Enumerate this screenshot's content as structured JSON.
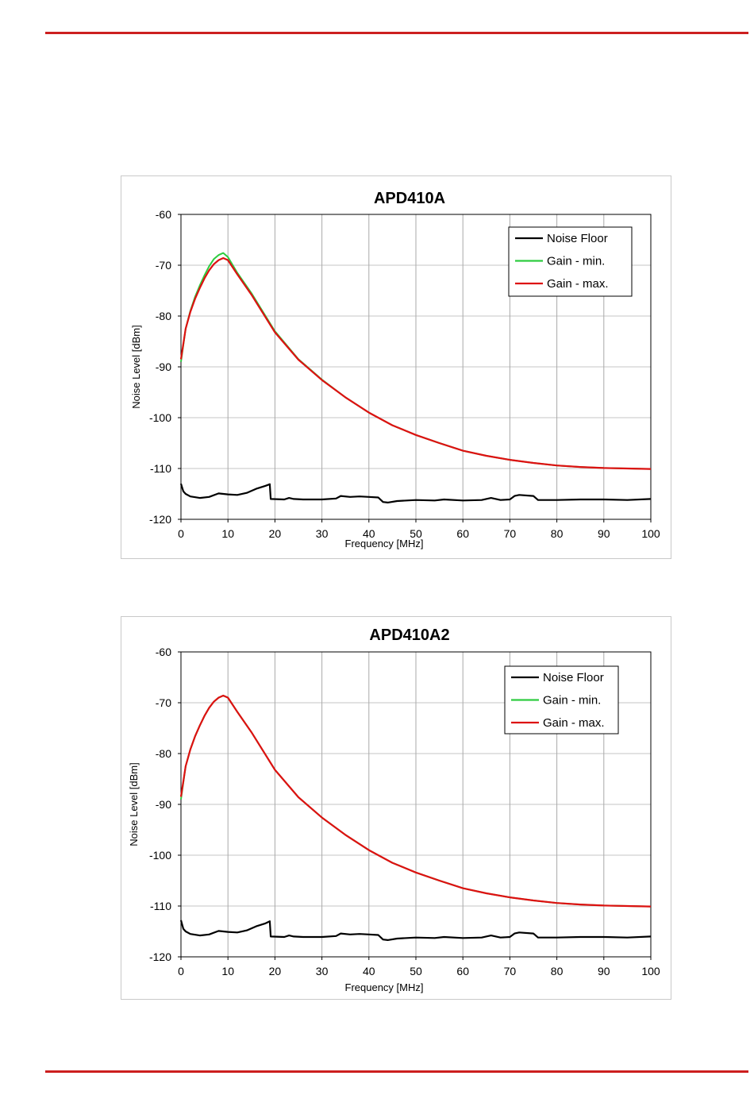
{
  "colors": {
    "rule": "#cc1f1f",
    "noise_floor": "#000000",
    "gain_min": "#2ecc40",
    "gain_max": "#dd1111"
  },
  "chart_data": [
    {
      "type": "line",
      "title": "APD410A",
      "xlabel": "Frequency [MHz]",
      "ylabel": "Noise Level [dBm]",
      "xlim": [
        0,
        100
      ],
      "ylim": [
        -120,
        -60
      ],
      "xticks": [
        "0",
        "10",
        "20",
        "30",
        "40",
        "50",
        "60",
        "70",
        "80",
        "90",
        "100"
      ],
      "yticks": [
        "-60",
        "-70",
        "-80",
        "-90",
        "-100",
        "-110",
        "-120"
      ],
      "grid": true,
      "legend_position": "top-right",
      "series": [
        {
          "name": "Noise Floor",
          "color": "#000000",
          "x": [
            0,
            0.5,
            1,
            2,
            4,
            6,
            8,
            10,
            12,
            14,
            16,
            18,
            18.9,
            19.1,
            22,
            23,
            24,
            26,
            30,
            33,
            34,
            36,
            38,
            40,
            42,
            43,
            44,
            46,
            50,
            54,
            56,
            60,
            64,
            66,
            68,
            70,
            71,
            72,
            75,
            76,
            80,
            85,
            90,
            95,
            100
          ],
          "y": [
            -113,
            -114.5,
            -115,
            -115.5,
            -115.8,
            -115.6,
            -114.9,
            -115.1,
            -115.2,
            -114.8,
            -114,
            -113.4,
            -113.1,
            -116,
            -116.1,
            -115.8,
            -116,
            -116.1,
            -116.1,
            -115.9,
            -115.4,
            -115.6,
            -115.5,
            -115.6,
            -115.7,
            -116.6,
            -116.7,
            -116.4,
            -116.2,
            -116.3,
            -116.1,
            -116.3,
            -116.2,
            -115.8,
            -116.2,
            -116.1,
            -115.4,
            -115.2,
            -115.4,
            -116.2,
            -116.2,
            -116.1,
            -116.1,
            -116.2,
            -116
          ]
        },
        {
          "name": "Gain - min.",
          "color": "#2ecc40",
          "x": [
            0,
            1,
            2,
            3,
            4,
            5,
            6,
            7,
            8,
            9,
            10,
            12,
            15,
            20,
            25,
            30,
            35,
            40,
            45,
            50,
            55,
            60,
            65,
            70,
            75,
            80,
            85,
            90,
            95,
            100
          ],
          "y": [
            -89,
            -82.5,
            -79,
            -76.2,
            -74,
            -72,
            -70.2,
            -68.8,
            -68,
            -67.6,
            -68.4,
            -71.5,
            -75.5,
            -83,
            -88.5,
            -92.5,
            -96,
            -99,
            -101.5,
            -103.4,
            -105,
            -106.5,
            -107.5,
            -108.3,
            -108.9,
            -109.4,
            -109.7,
            -109.9,
            -110,
            -110.1
          ]
        },
        {
          "name": "Gain - max.",
          "color": "#dd1111",
          "x": [
            0,
            1,
            2,
            3,
            4,
            5,
            6,
            7,
            8,
            9,
            10,
            12,
            15,
            20,
            25,
            30,
            35,
            40,
            45,
            50,
            55,
            60,
            65,
            70,
            75,
            80,
            85,
            90,
            95,
            100
          ],
          "y": [
            -88.5,
            -82.5,
            -79.2,
            -76.6,
            -74.5,
            -72.6,
            -71,
            -69.8,
            -69,
            -68.6,
            -69,
            -71.8,
            -75.8,
            -83.2,
            -88.6,
            -92.6,
            -96,
            -99,
            -101.5,
            -103.4,
            -105,
            -106.5,
            -107.5,
            -108.3,
            -108.9,
            -109.4,
            -109.7,
            -109.9,
            -110,
            -110.1
          ]
        }
      ]
    },
    {
      "type": "line",
      "title": "APD410A2",
      "xlabel": "Frequency [MHz]",
      "ylabel": "Noise Level [dBm]",
      "xlim": [
        0,
        100
      ],
      "ylim": [
        -120,
        -60
      ],
      "xticks": [
        "0",
        "10",
        "20",
        "30",
        "40",
        "50",
        "60",
        "70",
        "80",
        "90",
        "100"
      ],
      "yticks": [
        "-60",
        "-70",
        "-80",
        "-90",
        "-100",
        "-110",
        "-120"
      ],
      "grid": true,
      "legend_position": "top-right",
      "series": [
        {
          "name": "Noise Floor",
          "color": "#000000",
          "x": [
            0,
            0.5,
            1,
            2,
            4,
            6,
            8,
            10,
            12,
            14,
            16,
            18,
            18.9,
            19.1,
            22,
            23,
            24,
            26,
            30,
            33,
            34,
            36,
            38,
            40,
            42,
            43,
            44,
            46,
            50,
            54,
            56,
            60,
            64,
            66,
            68,
            70,
            71,
            72,
            75,
            76,
            80,
            85,
            90,
            95,
            100
          ],
          "y": [
            -112.8,
            -114.5,
            -115,
            -115.5,
            -115.8,
            -115.6,
            -114.9,
            -115.1,
            -115.2,
            -114.8,
            -114,
            -113.4,
            -113,
            -116,
            -116.1,
            -115.8,
            -116,
            -116.1,
            -116.1,
            -115.9,
            -115.4,
            -115.6,
            -115.5,
            -115.6,
            -115.7,
            -116.6,
            -116.7,
            -116.4,
            -116.2,
            -116.3,
            -116.1,
            -116.3,
            -116.2,
            -115.8,
            -116.2,
            -116.1,
            -115.4,
            -115.2,
            -115.4,
            -116.2,
            -116.2,
            -116.1,
            -116.1,
            -116.2,
            -116
          ]
        },
        {
          "name": "Gain - min.",
          "color": "#2ecc40",
          "x": [
            0,
            1,
            2,
            3,
            4,
            5,
            6,
            7,
            8,
            9,
            10,
            12,
            15,
            20,
            25,
            30,
            35,
            40,
            45,
            50,
            55,
            60,
            65,
            70,
            75,
            80,
            85,
            90,
            95,
            100
          ],
          "y": [
            -89,
            -82.5,
            -79.2,
            -76.6,
            -74.5,
            -72.6,
            -71,
            -69.8,
            -69,
            -68.6,
            -69,
            -71.8,
            -75.8,
            -83.2,
            -88.6,
            -92.6,
            -96,
            -99,
            -101.5,
            -103.4,
            -105,
            -106.5,
            -107.5,
            -108.3,
            -108.9,
            -109.4,
            -109.7,
            -109.9,
            -110,
            -110.1
          ]
        },
        {
          "name": "Gain - max.",
          "color": "#dd1111",
          "x": [
            0,
            1,
            2,
            3,
            4,
            5,
            6,
            7,
            8,
            9,
            10,
            12,
            15,
            20,
            25,
            30,
            35,
            40,
            45,
            50,
            55,
            60,
            65,
            70,
            75,
            80,
            85,
            90,
            95,
            100
          ],
          "y": [
            -88.5,
            -82.5,
            -79.2,
            -76.6,
            -74.5,
            -72.6,
            -71,
            -69.8,
            -69,
            -68.6,
            -69,
            -71.8,
            -75.8,
            -83.2,
            -88.6,
            -92.6,
            -96,
            -99,
            -101.5,
            -103.4,
            -105,
            -106.5,
            -107.5,
            -108.3,
            -108.9,
            -109.4,
            -109.7,
            -109.9,
            -110,
            -110.1
          ]
        }
      ]
    }
  ]
}
